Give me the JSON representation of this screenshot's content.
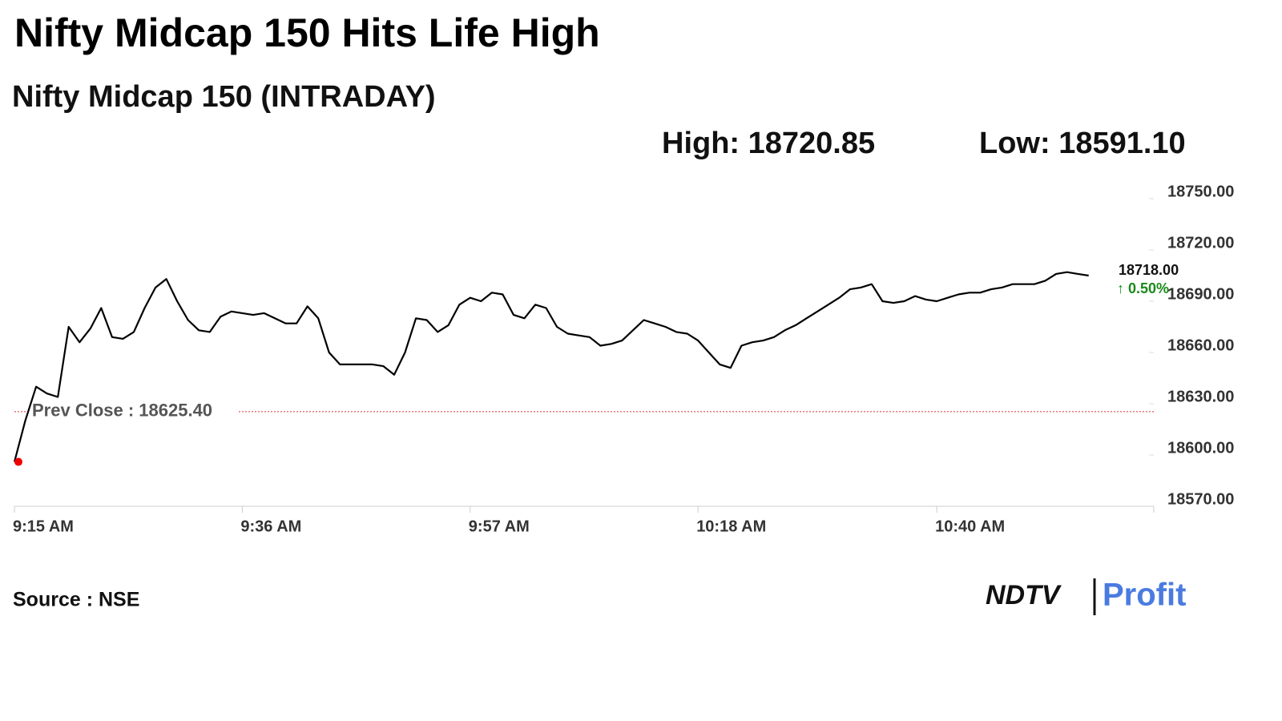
{
  "chart_data": {
    "type": "line",
    "title": "Nifty Midcap 150 Hits Life High",
    "subtitle": "Nifty Midcap 150 (INTRADAY)",
    "high": "High: 18720.85",
    "low": "Low: 18591.10",
    "x": [
      "9:15 AM",
      "9:16 AM",
      "9:17 AM",
      "9:18 AM",
      "9:19 AM",
      "9:20 AM",
      "9:21 AM",
      "9:22 AM",
      "9:23 AM",
      "9:24 AM",
      "9:25 AM",
      "9:26 AM",
      "9:27 AM",
      "9:28 AM",
      "9:29 AM",
      "9:30 AM",
      "9:31 AM",
      "9:32 AM",
      "9:33 AM",
      "9:34 AM",
      "9:35 AM",
      "9:36 AM",
      "9:37 AM",
      "9:38 AM",
      "9:39 AM",
      "9:40 AM",
      "9:41 AM",
      "9:42 AM",
      "9:43 AM",
      "9:44 AM",
      "9:45 AM",
      "9:46 AM",
      "9:47 AM",
      "9:48 AM",
      "9:49 AM",
      "9:50 AM",
      "9:51 AM",
      "9:52 AM",
      "9:53 AM",
      "9:54 AM",
      "9:55 AM",
      "9:56 AM",
      "9:57 AM",
      "9:58 AM",
      "9:59 AM",
      "10:00 AM",
      "10:01 AM",
      "10:02 AM",
      "10:03 AM",
      "10:04 AM",
      "10:05 AM",
      "10:06 AM",
      "10:07 AM",
      "10:08 AM",
      "10:09 AM",
      "10:10 AM",
      "10:11 AM",
      "10:12 AM",
      "10:13 AM",
      "10:14 AM",
      "10:15 AM",
      "10:16 AM",
      "10:17 AM",
      "10:18 AM",
      "10:19 AM",
      "10:20 AM",
      "10:21 AM",
      "10:22 AM",
      "10:23 AM",
      "10:24 AM",
      "10:25 AM",
      "10:26 AM",
      "10:27 AM",
      "10:28 AM",
      "10:29 AM",
      "10:30 AM",
      "10:31 AM",
      "10:32 AM",
      "10:33 AM",
      "10:34 AM",
      "10:35 AM",
      "10:36 AM",
      "10:37 AM",
      "10:38 AM",
      "10:39 AM",
      "10:40 AM",
      "10:41 AM",
      "10:42 AM",
      "10:43 AM",
      "10:44 AM",
      "10:45 AM",
      "10:46 AM",
      "10:47 AM",
      "10:48 AM",
      "10:49 AM",
      "10:50 AM",
      "10:51 AM",
      "10:52 AM",
      "10:53 AM",
      "10:54 AM"
    ],
    "values": [
      18596,
      18620,
      18640,
      18636,
      18634,
      18675,
      18666,
      18674,
      18686,
      18669,
      18668,
      18672,
      18686,
      18698,
      18703,
      18690,
      18679,
      18673,
      18672,
      18681,
      18684,
      18683,
      18682,
      18683,
      18680,
      18677,
      18677,
      18687,
      18680,
      18660,
      18653,
      18653,
      18653,
      18653,
      18652,
      18647,
      18660,
      18680,
      18679,
      18672,
      18676,
      18688,
      18692,
      18690,
      18695,
      18694,
      18682,
      18680,
      18688,
      18686,
      18675,
      18671,
      18670,
      18669,
      18664,
      18665,
      18667,
      18673,
      18679,
      18677,
      18675,
      18672,
      18671,
      18667,
      18660,
      18653,
      18651,
      18664,
      18666,
      18667,
      18669,
      18673,
      18676,
      18680,
      18684,
      18688,
      18692,
      18697,
      18698,
      18700,
      18690,
      18689,
      18690,
      18693,
      18691,
      18690,
      18692,
      18694,
      18695,
      18695,
      18697,
      18698,
      18700,
      18700,
      18700,
      18702,
      18706,
      18707,
      18706,
      18705
    ],
    "color": "#000000",
    "xlim": [
      "9:15 AM",
      "11:00 AM"
    ],
    "xticks": [
      "9:15 AM",
      "9:36 AM",
      "9:57 AM",
      "10:18 AM",
      "10:40 AM"
    ],
    "ylim": [
      18570,
      18750
    ],
    "yticks": [
      {
        "value": 18570,
        "label": "18570.00"
      },
      {
        "value": 18600,
        "label": "18600.00"
      },
      {
        "value": 18630,
        "label": "18630.00"
      },
      {
        "value": 18660,
        "label": "18660.00"
      },
      {
        "value": 18690,
        "label": "18690.00"
      },
      {
        "value": 18720,
        "label": "18720.00"
      },
      {
        "value": 18750,
        "label": "18750.00"
      }
    ],
    "prev_close": {
      "value": 18625.4,
      "label": "Prev Close : 18625.40"
    },
    "last_price": "18718.00",
    "change": "↑ 0.50%",
    "source": "Source : NSE",
    "logo": "NDTV",
    "logo_suffix": "Profit"
  }
}
